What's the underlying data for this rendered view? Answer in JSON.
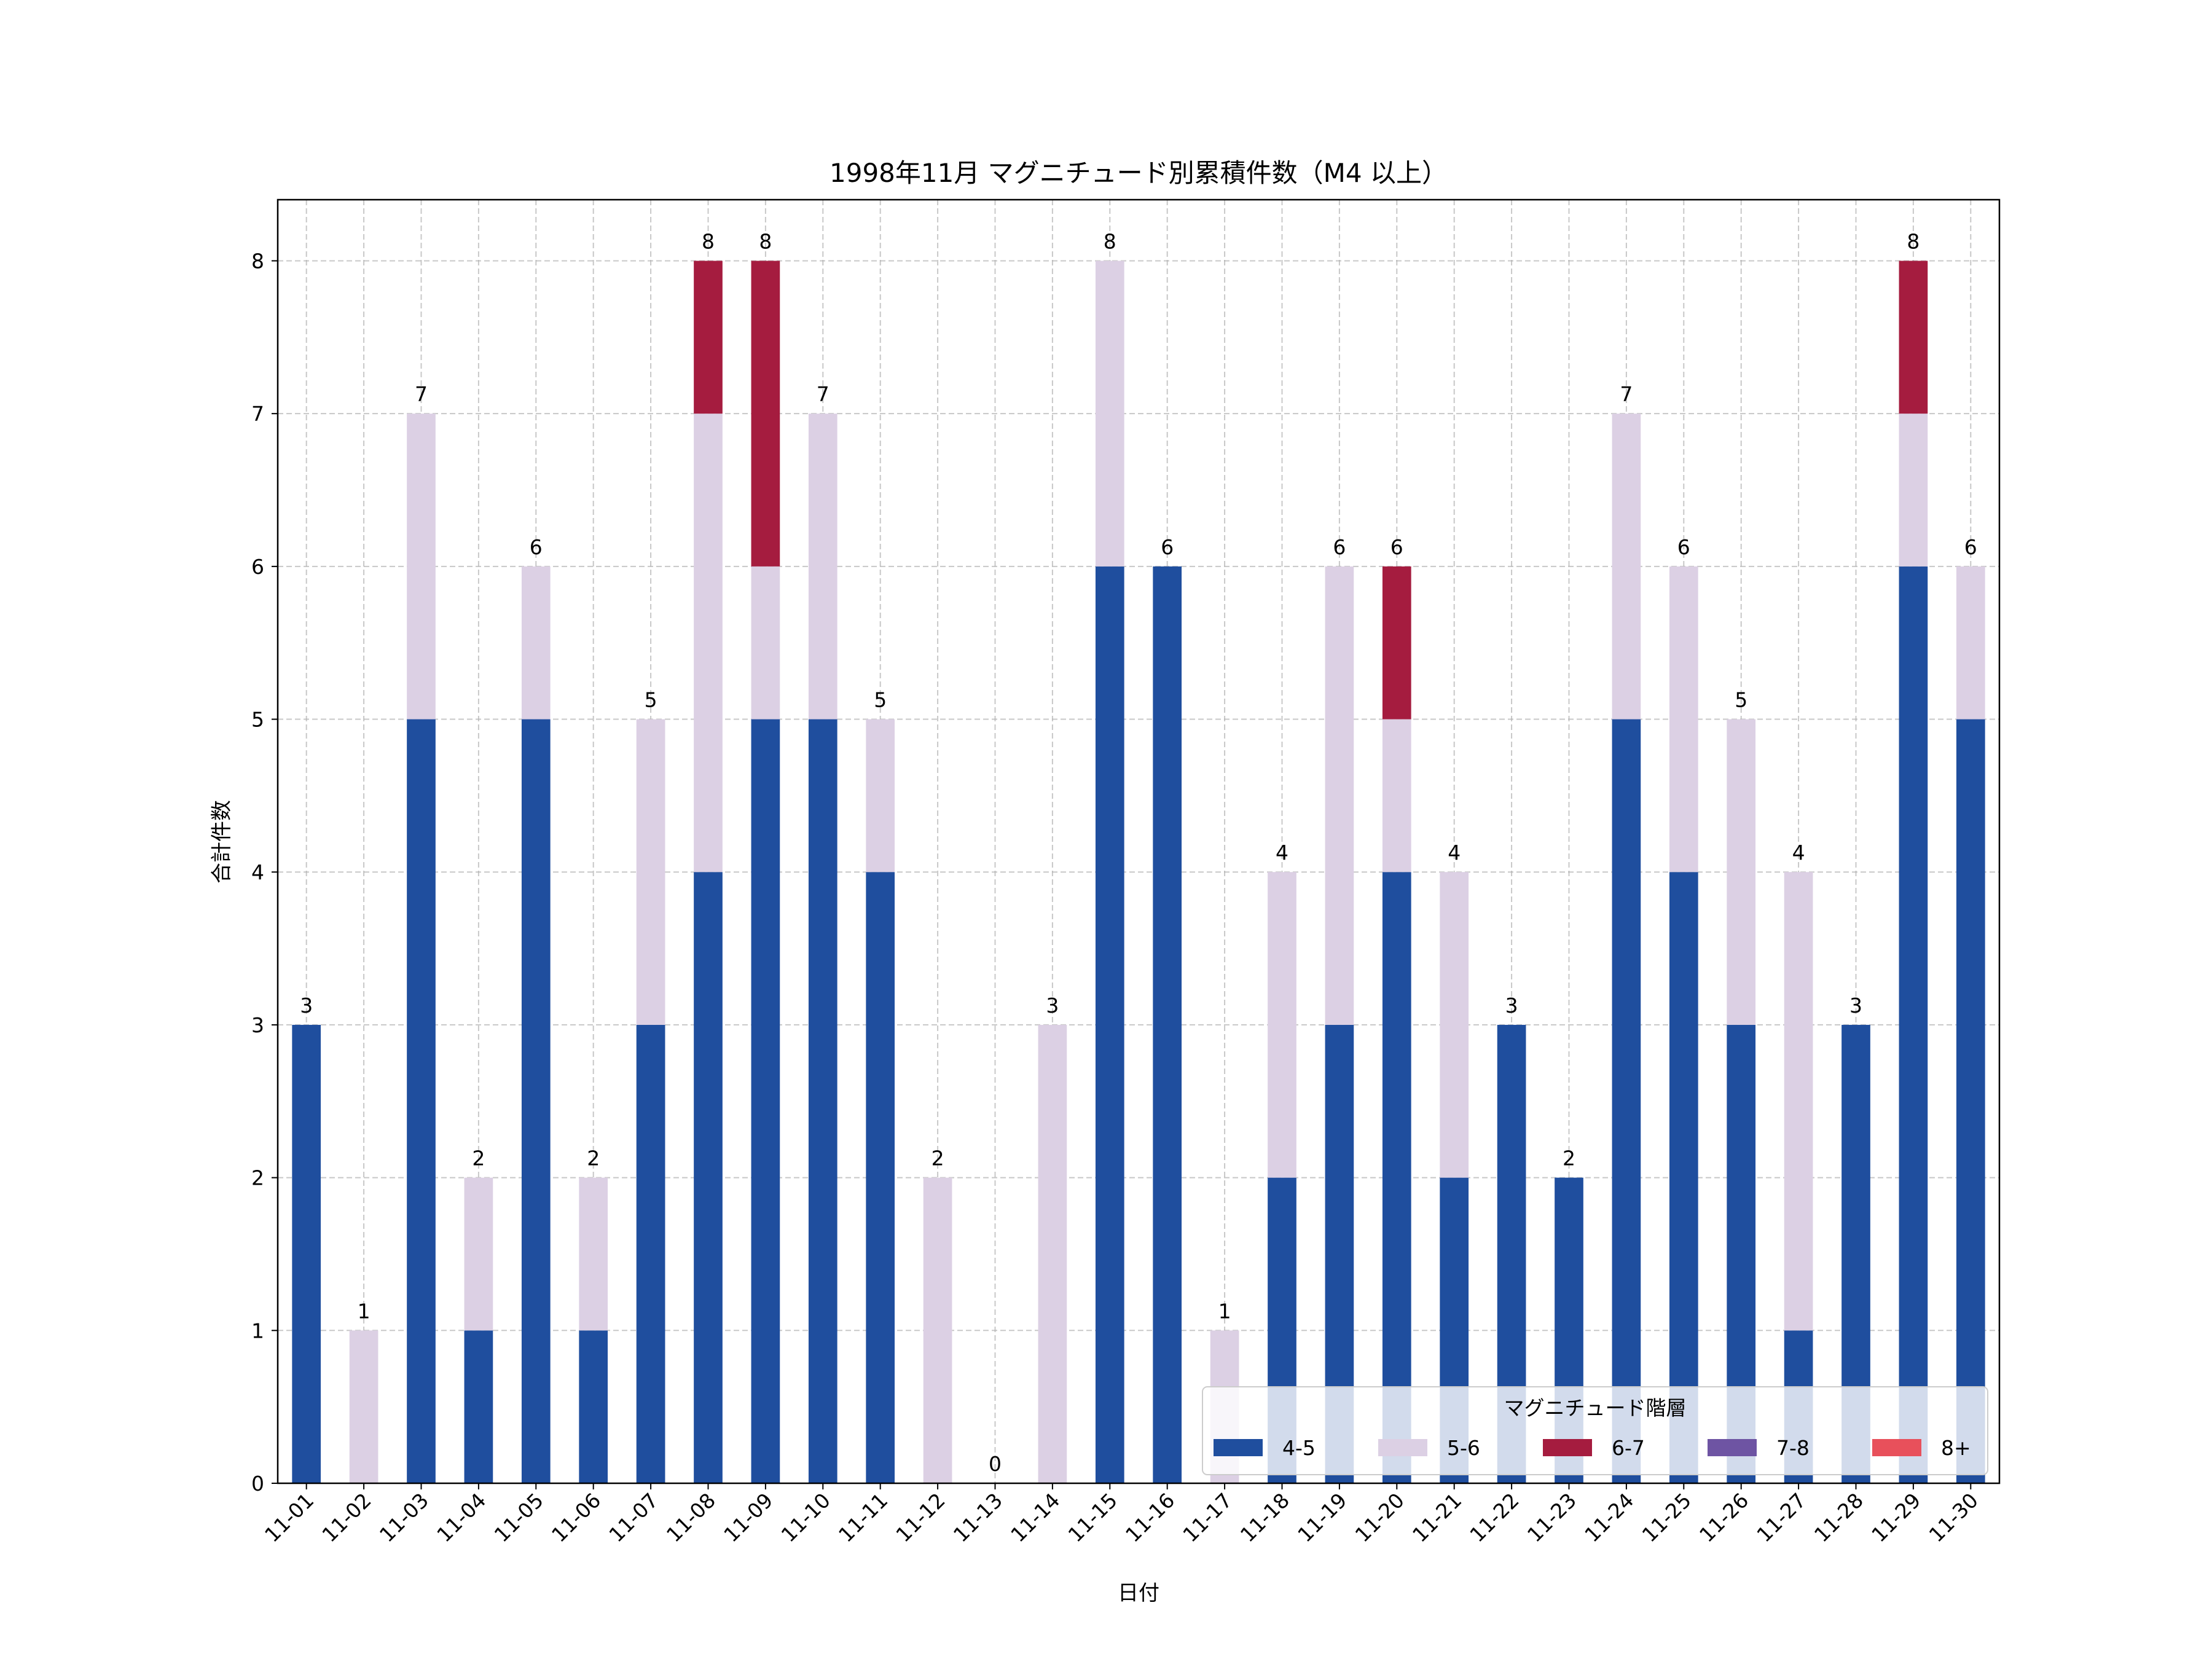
{
  "chart_data": {
    "type": "bar",
    "stacked": true,
    "title": "1998年11月 マグニチュード別累積件数（M4 以上）",
    "xlabel": "日付",
    "ylabel": "合計件数",
    "ylim": [
      0,
      8.4
    ],
    "yticks": [
      "0",
      "1",
      "2",
      "3",
      "4",
      "5",
      "6",
      "7",
      "8"
    ],
    "grid": true,
    "categories": [
      "11-01",
      "11-02",
      "11-03",
      "11-04",
      "11-05",
      "11-06",
      "11-07",
      "11-08",
      "11-09",
      "11-10",
      "11-11",
      "11-12",
      "11-13",
      "11-14",
      "11-15",
      "11-16",
      "11-17",
      "11-18",
      "11-19",
      "11-20",
      "11-21",
      "11-22",
      "11-23",
      "11-24",
      "11-25",
      "11-26",
      "11-27",
      "11-28",
      "11-29",
      "11-30"
    ],
    "series": [
      {
        "name": "4-5",
        "color": "#1f4e9e",
        "values": [
          3,
          0,
          5,
          1,
          5,
          1,
          3,
          4,
          5,
          5,
          4,
          0,
          0,
          0,
          6,
          6,
          0,
          2,
          3,
          4,
          2,
          3,
          2,
          5,
          4,
          3,
          1,
          3,
          6,
          5
        ]
      },
      {
        "name": "5-6",
        "color": "#dcd0e4",
        "values": [
          0,
          1,
          2,
          1,
          1,
          1,
          2,
          3,
          1,
          2,
          1,
          2,
          0,
          3,
          2,
          0,
          1,
          2,
          3,
          1,
          2,
          0,
          0,
          2,
          2,
          2,
          3,
          0,
          1,
          1
        ]
      },
      {
        "name": "6-7",
        "color": "#a51c3f",
        "values": [
          0,
          0,
          0,
          0,
          0,
          0,
          0,
          1,
          2,
          0,
          0,
          0,
          0,
          0,
          0,
          0,
          0,
          0,
          0,
          1,
          0,
          0,
          0,
          0,
          0,
          0,
          0,
          0,
          1,
          0
        ]
      },
      {
        "name": "7-8",
        "color": "#6e54a3",
        "values": [
          0,
          0,
          0,
          0,
          0,
          0,
          0,
          0,
          0,
          0,
          0,
          0,
          0,
          0,
          0,
          0,
          0,
          0,
          0,
          0,
          0,
          0,
          0,
          0,
          0,
          0,
          0,
          0,
          0,
          0
        ]
      },
      {
        "name": "8+",
        "color": "#e8505b",
        "values": [
          0,
          0,
          0,
          0,
          0,
          0,
          0,
          0,
          0,
          0,
          0,
          0,
          0,
          0,
          0,
          0,
          0,
          0,
          0,
          0,
          0,
          0,
          0,
          0,
          0,
          0,
          0,
          0,
          0,
          0
        ]
      }
    ],
    "totals": [
      3,
      1,
      7,
      2,
      6,
      2,
      5,
      8,
      8,
      7,
      5,
      2,
      0,
      3,
      8,
      6,
      1,
      4,
      6,
      6,
      4,
      3,
      2,
      7,
      6,
      5,
      4,
      3,
      8,
      6
    ],
    "legend": {
      "title": "マグニチュード階層",
      "placement": "lower-right"
    }
  }
}
